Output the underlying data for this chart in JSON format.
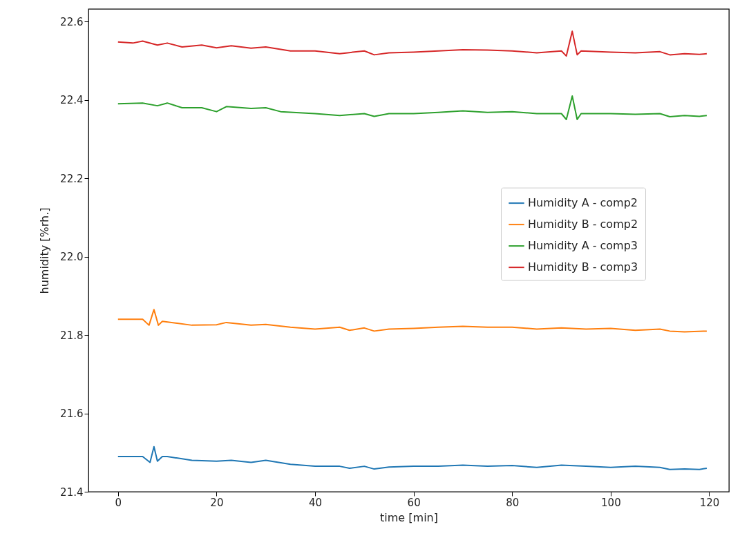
{
  "chart_data": {
    "type": "line",
    "xlabel": "time [min]",
    "ylabel": "humidity [%rh.]",
    "xlim": [
      -6,
      124
    ],
    "ylim": [
      21.4,
      22.632
    ],
    "xticks": [
      0,
      20,
      40,
      60,
      80,
      100,
      120
    ],
    "yticks": [
      21.4,
      21.6,
      21.8,
      {
        "value": 22,
        "label": "22.0"
      },
      22.2,
      22.4,
      22.6
    ],
    "grid": false,
    "legend": "right",
    "line_style": "solid",
    "marker": "none",
    "series": [
      {
        "name": "Humidity A - comp2",
        "color": "#1f77b4",
        "x": [
          0,
          5,
          6.5,
          7.3,
          8,
          9,
          10,
          15,
          20,
          23,
          27,
          30,
          35,
          40,
          45,
          47,
          50,
          52,
          55,
          60,
          65,
          70,
          75,
          80,
          85,
          90,
          95,
          100,
          105,
          110,
          112,
          115,
          118,
          119.5
        ],
        "values": [
          21.49,
          21.49,
          21.475,
          21.515,
          21.478,
          21.49,
          21.49,
          21.48,
          21.478,
          21.48,
          21.475,
          21.48,
          21.47,
          21.465,
          21.465,
          21.46,
          21.465,
          21.458,
          21.463,
          21.465,
          21.465,
          21.468,
          21.465,
          21.467,
          21.462,
          21.468,
          21.465,
          21.462,
          21.465,
          21.462,
          21.457,
          21.458,
          21.457,
          21.46
        ]
      },
      {
        "name": "Humidity B - comp2",
        "color": "#ff7f0e",
        "x": [
          0,
          5,
          6.3,
          7.3,
          8.2,
          9,
          12,
          15,
          20,
          22,
          27,
          30,
          35,
          40,
          45,
          47,
          50,
          52,
          55,
          60,
          65,
          70,
          75,
          80,
          85,
          90,
          95,
          100,
          105,
          110,
          112,
          115,
          119.5
        ],
        "values": [
          21.84,
          21.84,
          21.825,
          21.865,
          21.825,
          21.835,
          21.83,
          21.825,
          21.826,
          21.832,
          21.825,
          21.827,
          21.82,
          21.815,
          21.82,
          21.812,
          21.818,
          21.81,
          21.815,
          21.817,
          21.82,
          21.822,
          21.82,
          21.82,
          21.815,
          21.818,
          21.815,
          21.817,
          21.812,
          21.815,
          21.81,
          21.808,
          21.81
        ]
      },
      {
        "name": "Humidity A - comp3",
        "color": "#2ca02c",
        "x": [
          0,
          5,
          8,
          10,
          13,
          17,
          20,
          22,
          27,
          30,
          33,
          40,
          45,
          50,
          52,
          55,
          60,
          65,
          70,
          75,
          80,
          85,
          90,
          91,
          92.2,
          93.2,
          94,
          100,
          105,
          110,
          112,
          115,
          118,
          119.5
        ],
        "values": [
          22.39,
          22.392,
          22.385,
          22.392,
          22.38,
          22.38,
          22.37,
          22.383,
          22.378,
          22.38,
          22.37,
          22.365,
          22.36,
          22.365,
          22.358,
          22.365,
          22.365,
          22.368,
          22.372,
          22.368,
          22.37,
          22.365,
          22.365,
          22.35,
          22.41,
          22.35,
          22.365,
          22.365,
          22.363,
          22.365,
          22.357,
          22.36,
          22.358,
          22.36
        ]
      },
      {
        "name": "Humidity B - comp3",
        "color": "#d62728",
        "x": [
          0,
          3,
          5,
          8,
          10,
          13,
          17,
          20,
          23,
          27,
          30,
          35,
          40,
          45,
          50,
          52,
          55,
          60,
          65,
          70,
          75,
          80,
          85,
          90,
          91,
          92.2,
          93.2,
          94,
          100,
          105,
          110,
          112,
          115,
          118,
          119.5
        ],
        "values": [
          22.548,
          22.545,
          22.55,
          22.54,
          22.545,
          22.535,
          22.54,
          22.533,
          22.538,
          22.532,
          22.535,
          22.525,
          22.525,
          22.518,
          22.525,
          22.515,
          22.52,
          22.522,
          22.525,
          22.528,
          22.527,
          22.525,
          22.52,
          22.525,
          22.512,
          22.575,
          22.515,
          22.525,
          22.522,
          22.52,
          22.523,
          22.515,
          22.518,
          22.516,
          22.518
        ]
      }
    ]
  }
}
